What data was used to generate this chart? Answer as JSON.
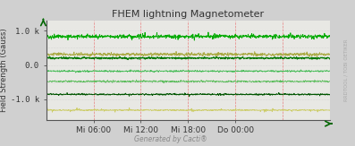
{
  "title": "FHEM lightning Magnetometer",
  "ylabel": "Field Strength (Gauss)",
  "background_color": "#d0d0d0",
  "plot_background": "#e8e8e4",
  "grid_color_v": "#e88080",
  "grid_color_h": "#c8c8c8",
  "right_label": "RRDTOOL / TOBI OETIKER",
  "footer": "Generated by Cacti®",
  "xlim": [
    0,
    1440
  ],
  "ylim": [
    -1600,
    1300
  ],
  "yticks": [
    -1000,
    0,
    1000
  ],
  "ytick_labels": [
    "-1.0 k",
    "0.0",
    "1.0 k"
  ],
  "xtick_positions": [
    240,
    480,
    720,
    960
  ],
  "xtick_labels": [
    "Mi 06:00",
    "Mi 12:00",
    "Mi 18:00",
    "Do 00:00"
  ],
  "vgrid_positions": [
    240,
    480,
    720,
    960,
    1200
  ],
  "hgrid_positions": [
    -1000,
    -500,
    0,
    500,
    1000
  ],
  "lines": [
    {
      "level": 830,
      "noise": 35,
      "color": "#00aa00",
      "lw": 0.6,
      "spike_freq": 0.025,
      "spike_amp": 150
    },
    {
      "level": 310,
      "noise": 30,
      "color": "#aaaa44",
      "lw": 0.6,
      "spike_freq": 0.01,
      "spike_amp": 70
    },
    {
      "level": 200,
      "noise": 20,
      "color": "#007700",
      "lw": 0.7,
      "spike_freq": 0.008,
      "spike_amp": 50
    },
    {
      "level": -180,
      "noise": 18,
      "color": "#44bb55",
      "lw": 0.5,
      "spike_freq": 0.008,
      "spike_amp": 40
    },
    {
      "level": -480,
      "noise": 18,
      "color": "#55bb55",
      "lw": 0.5,
      "spike_freq": 0.008,
      "spike_amp": 40
    },
    {
      "level": -860,
      "noise": 15,
      "color": "#005500",
      "lw": 0.6,
      "spike_freq": 0.005,
      "spike_amp": 100
    },
    {
      "level": -1320,
      "noise": 12,
      "color": "#cccc66",
      "lw": 0.6,
      "spike_freq": 0.015,
      "spike_amp": 120
    }
  ]
}
